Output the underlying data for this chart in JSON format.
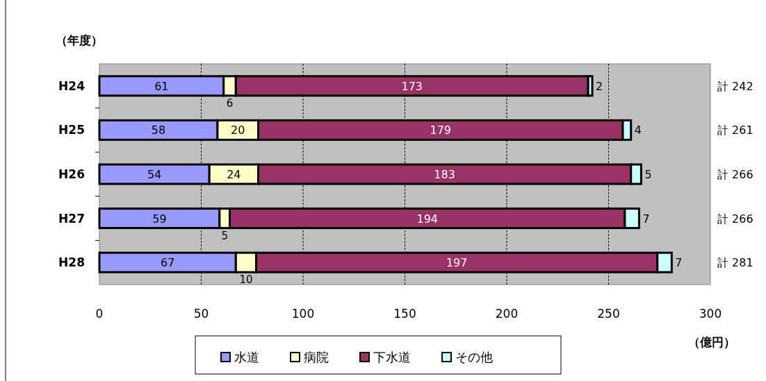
{
  "chart_data": {
    "type": "bar",
    "orientation": "horizontal",
    "stacked": true,
    "categories": [
      "H24",
      "H25",
      "H26",
      "H27",
      "H28"
    ],
    "series": [
      {
        "name": "水道",
        "color": "#9999ff",
        "values": [
          61,
          58,
          54,
          59,
          67
        ]
      },
      {
        "name": "病院",
        "color": "#ffffcc",
        "values": [
          6,
          20,
          24,
          5,
          10
        ]
      },
      {
        "name": "下水道",
        "color": "#993366",
        "values": [
          173,
          179,
          183,
          194,
          197
        ]
      },
      {
        "name": "その他",
        "color": "#ccffff",
        "values": [
          2,
          4,
          5,
          7,
          7
        ]
      }
    ],
    "annotations": [
      "計 242",
      "計 261",
      "計 266",
      "計 266",
      "計 281"
    ],
    "data_labels": true,
    "xlim": [
      0,
      300
    ],
    "xticks": [
      0,
      50,
      100,
      150,
      200,
      250,
      300
    ],
    "ylabel": "（年度）",
    "xlabel": "（億円）",
    "grid": "x",
    "legend": "bottom"
  }
}
